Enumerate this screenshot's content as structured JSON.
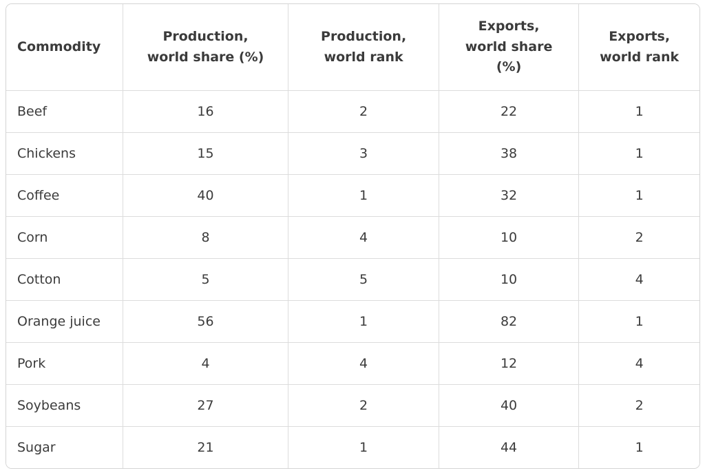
{
  "table": {
    "columns": [
      {
        "label": "Commodity",
        "align": "left"
      },
      {
        "label": "Production,\nworld share (%)",
        "align": "center"
      },
      {
        "label": "Production,\nworld rank",
        "align": "center"
      },
      {
        "label": "Exports,\nworld share\n(%)",
        "align": "center"
      },
      {
        "label": "Exports,\nworld rank",
        "align": "center"
      }
    ],
    "rows": [
      {
        "cells": [
          "Beef",
          "16",
          "2",
          "22",
          "1"
        ]
      },
      {
        "cells": [
          "Chickens",
          "15",
          "3",
          "38",
          "1"
        ]
      },
      {
        "cells": [
          "Coffee",
          "40",
          "1",
          "32",
          "1"
        ]
      },
      {
        "cells": [
          "Corn",
          "8",
          "4",
          "10",
          "2"
        ]
      },
      {
        "cells": [
          "Cotton",
          "5",
          "5",
          "10",
          "4"
        ]
      },
      {
        "cells": [
          "Orange juice",
          "56",
          "1",
          "82",
          "1"
        ]
      },
      {
        "cells": [
          "Pork",
          "4",
          "4",
          "12",
          "4"
        ]
      },
      {
        "cells": [
          "Soybeans",
          "27",
          "2",
          "40",
          "2"
        ]
      },
      {
        "cells": [
          "Sugar",
          "21",
          "1",
          "44",
          "1"
        ]
      }
    ]
  },
  "colors": {
    "border_outer": "#d4d4d4",
    "border_inner": "#dcdcdc",
    "text": "#3b3b3b",
    "background": "#ffffff"
  },
  "chart_data": {
    "type": "table",
    "title": "",
    "columns": [
      "Commodity",
      "Production, world share (%)",
      "Production, world rank",
      "Exports, world share (%)",
      "Exports, world rank"
    ],
    "rows": [
      [
        "Beef",
        16,
        2,
        22,
        1
      ],
      [
        "Chickens",
        15,
        3,
        38,
        1
      ],
      [
        "Coffee",
        40,
        1,
        32,
        1
      ],
      [
        "Corn",
        8,
        4,
        10,
        2
      ],
      [
        "Cotton",
        5,
        5,
        10,
        4
      ],
      [
        "Orange juice",
        56,
        1,
        82,
        1
      ],
      [
        "Pork",
        4,
        4,
        12,
        4
      ],
      [
        "Soybeans",
        27,
        2,
        40,
        2
      ],
      [
        "Sugar",
        21,
        1,
        44,
        1
      ]
    ]
  }
}
